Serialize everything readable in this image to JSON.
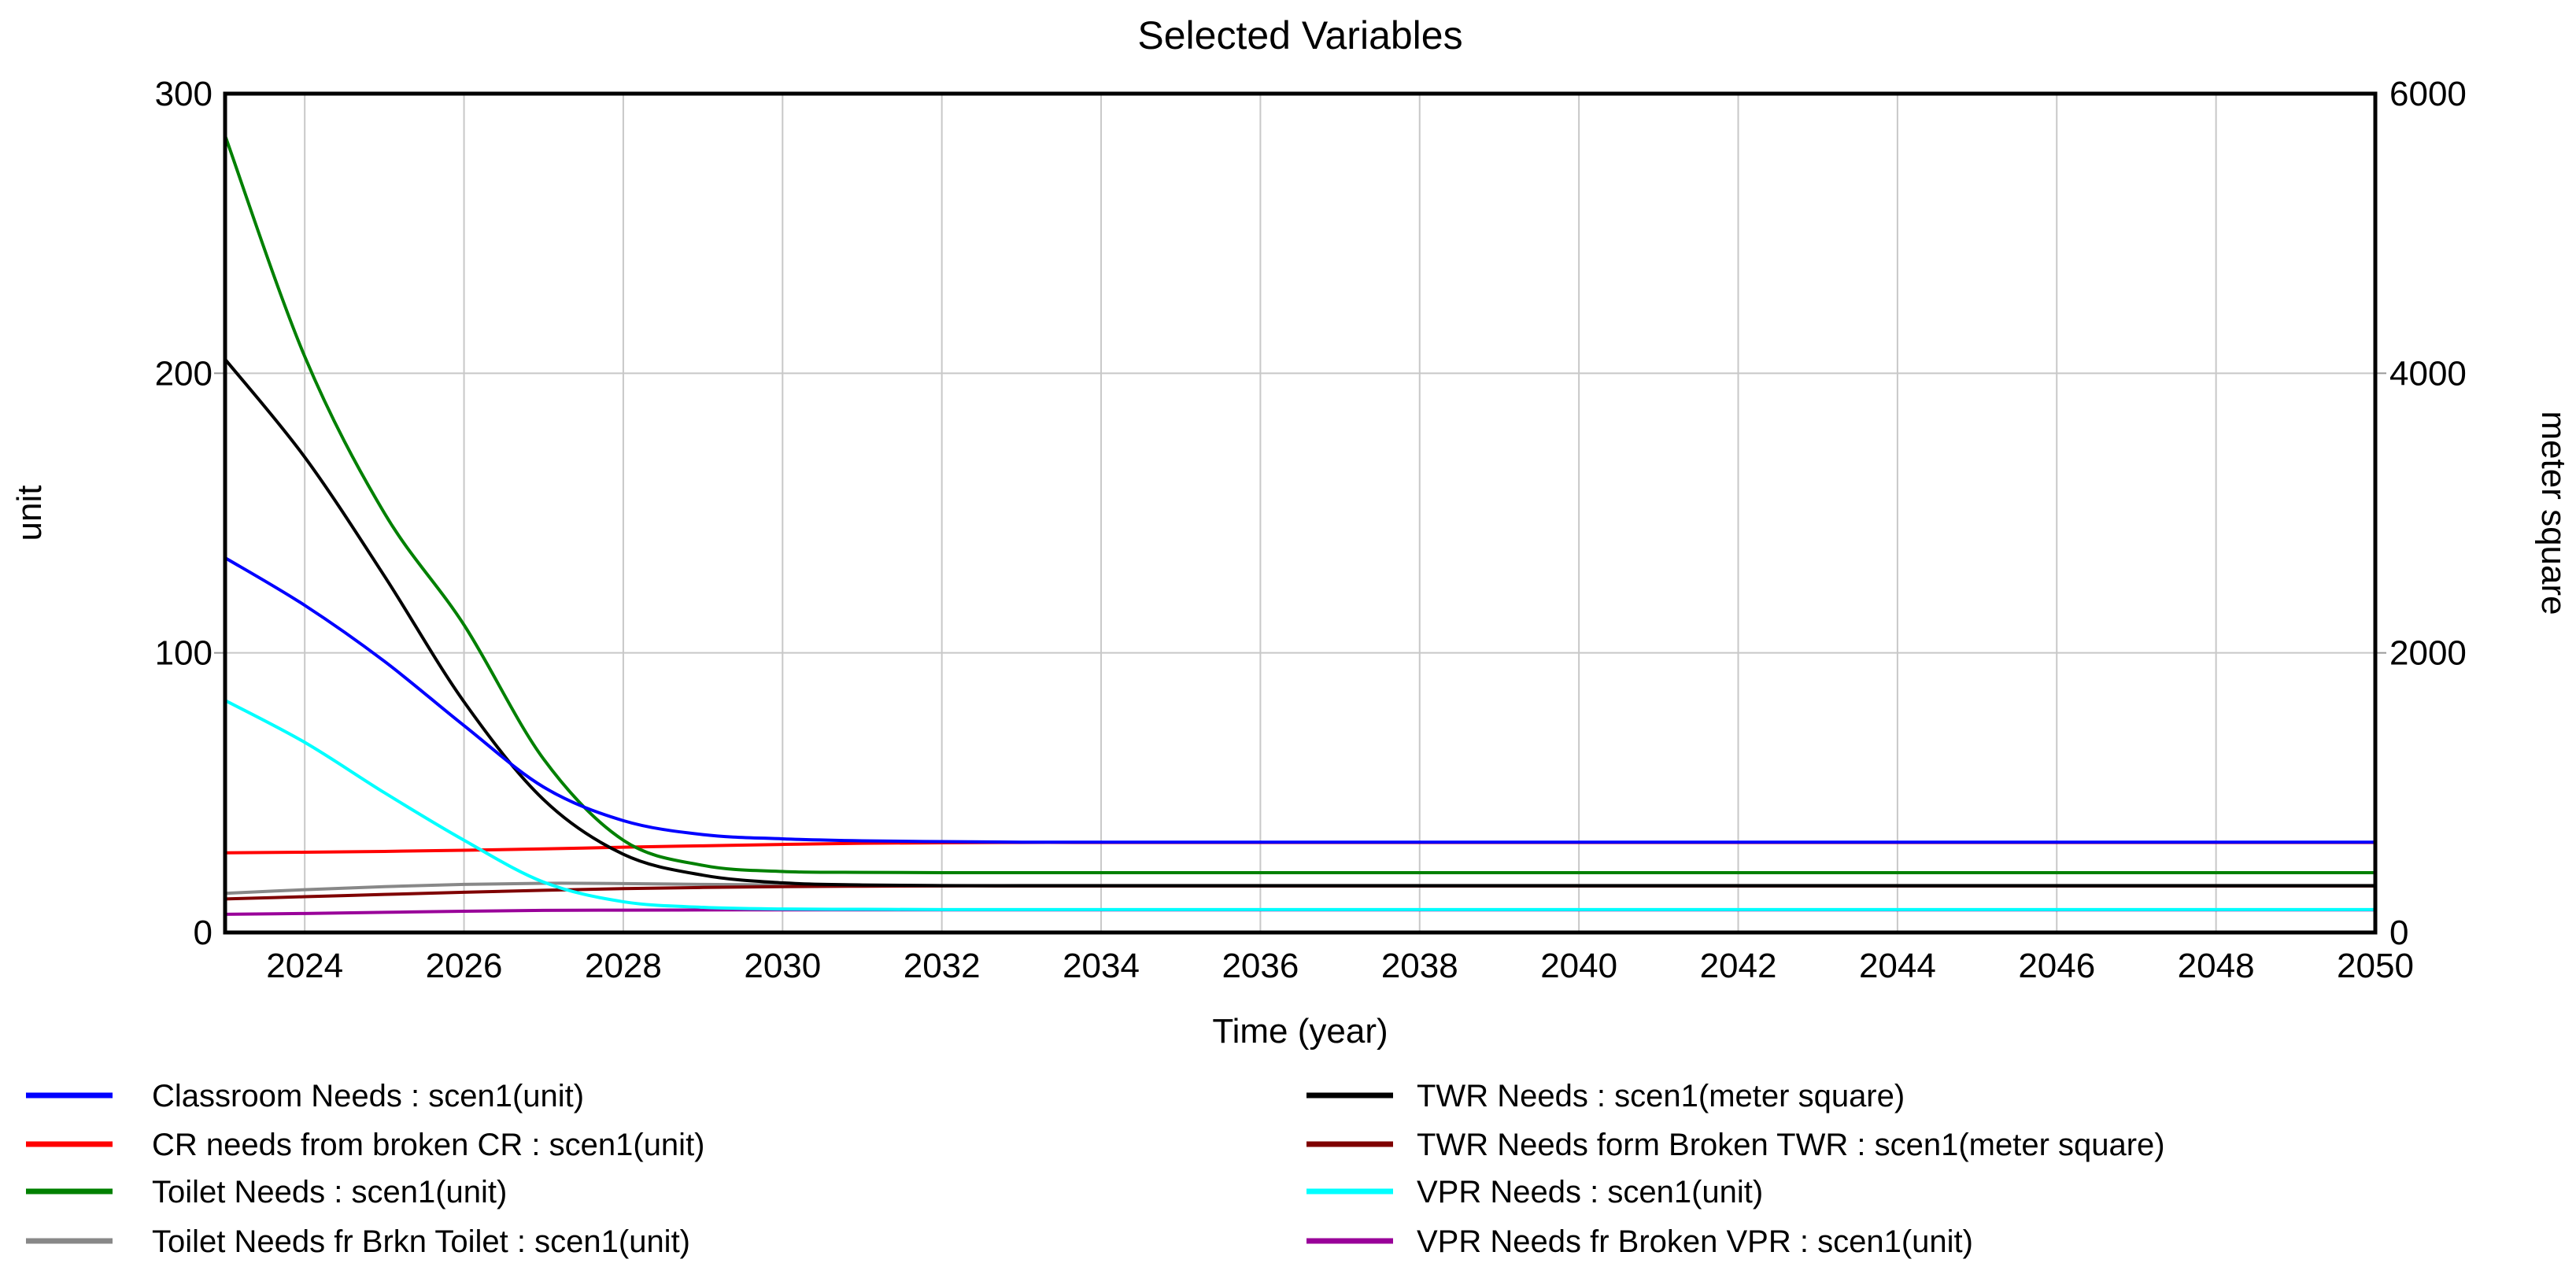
{
  "chart_data": {
    "type": "line",
    "title": "Selected Variables",
    "xlabel": "Time (year)",
    "ylabel_left": "unit",
    "ylabel_right": "meter square",
    "x_range": [
      2023,
      2050
    ],
    "y_left_range": [
      0,
      300
    ],
    "y_right_range": [
      0,
      6000
    ],
    "x_ticks": [
      2024,
      2026,
      2028,
      2030,
      2032,
      2034,
      2036,
      2038,
      2040,
      2042,
      2044,
      2046,
      2048,
      2050
    ],
    "y_left_ticks": [
      0,
      100,
      200,
      300
    ],
    "y_right_ticks": [
      0,
      2000,
      4000,
      6000
    ],
    "grid": true,
    "legend_position": "bottom-two-columns",
    "years": [
      2023,
      2024,
      2025,
      2026,
      2027,
      2028,
      2029,
      2030,
      2031,
      2032,
      2033,
      2034,
      2035,
      2036,
      2037,
      2038,
      2039,
      2040,
      2041,
      2042,
      2043,
      2044,
      2045,
      2046,
      2047,
      2048,
      2049,
      2050
    ],
    "series": [
      {
        "name": "Classroom Needs : scen1(unit)",
        "color": "#0000ff",
        "axis": "left",
        "values": [
          134,
          117,
          97,
          74,
          52,
          40,
          35,
          33.5,
          32.8,
          32.5,
          32.3,
          32.3,
          32.3,
          32.3,
          32.3,
          32.3,
          32.3,
          32.3,
          32.3,
          32.3,
          32.3,
          32.3,
          32.3,
          32.3,
          32.3,
          32.3,
          32.3,
          32.3
        ]
      },
      {
        "name": "CR needs from broken CR : scen1(unit)",
        "color": "#ff0000",
        "axis": "left",
        "values": [
          28.5,
          28.7,
          29,
          29.4,
          29.9,
          30.5,
          31,
          31.5,
          31.9,
          32.1,
          32.2,
          32.2,
          32.2,
          32.2,
          32.2,
          32.2,
          32.2,
          32.2,
          32.2,
          32.2,
          32.2,
          32.2,
          32.2,
          32.2,
          32.2,
          32.2,
          32.2,
          32.2
        ]
      },
      {
        "name": "Toilet Needs : scen1(unit)",
        "color": "#008000",
        "axis": "left",
        "values": [
          285,
          206,
          150,
          110,
          62,
          33,
          24,
          21.8,
          21.5,
          21.4,
          21.4,
          21.4,
          21.4,
          21.4,
          21.4,
          21.4,
          21.4,
          21.4,
          21.4,
          21.4,
          21.4,
          21.4,
          21.4,
          21.4,
          21.4,
          21.4,
          21.4,
          21.4
        ]
      },
      {
        "name": "Toilet Needs fr Brkn Toilet : scen1(unit)",
        "color": "#888888",
        "axis": "left",
        "values": [
          14,
          15.3,
          16.4,
          17.2,
          17.6,
          17.5,
          17.2,
          17,
          16.9,
          16.8,
          16.8,
          16.8,
          16.8,
          16.8,
          16.8,
          16.8,
          16.8,
          16.8,
          16.8,
          16.8,
          16.8,
          16.8,
          16.8,
          16.8,
          16.8,
          16.8,
          16.8,
          16.8
        ]
      },
      {
        "name": "TWR Needs : scen1(meter square)",
        "color": "#000000",
        "axis": "right",
        "values": [
          4100,
          3400,
          2550,
          1650,
          950,
          560,
          410,
          355,
          340,
          335,
          334,
          334,
          334,
          334,
          334,
          334,
          334,
          334,
          334,
          334,
          334,
          334,
          334,
          334,
          334,
          334,
          334,
          334
        ]
      },
      {
        "name": "TWR Needs form Broken TWR : scen1(meter square)",
        "color": "#7f0000",
        "axis": "right",
        "values": [
          240,
          256,
          272,
          288,
          302,
          314,
          322,
          328,
          331,
          333,
          333,
          333,
          333,
          333,
          333,
          333,
          333,
          333,
          333,
          333,
          333,
          333,
          333,
          333,
          333,
          333,
          333,
          333
        ]
      },
      {
        "name": "VPR Needs : scen1(unit)",
        "color": "#00ffff",
        "axis": "left",
        "values": [
          83,
          68,
          50,
          33,
          18,
          11,
          9,
          8.4,
          8.3,
          8.2,
          8.2,
          8.2,
          8.2,
          8.2,
          8.2,
          8.2,
          8.2,
          8.2,
          8.2,
          8.2,
          8.2,
          8.2,
          8.2,
          8.2,
          8.2,
          8.2,
          8.2,
          8.2
        ]
      },
      {
        "name": "VPR Needs fr Broken VPR : scen1(unit)",
        "color": "#990099",
        "axis": "left",
        "values": [
          6.5,
          6.8,
          7.2,
          7.6,
          7.9,
          8,
          8.05,
          8.1,
          8.1,
          8.1,
          8.1,
          8.1,
          8.1,
          8.1,
          8.1,
          8.1,
          8.1,
          8.1,
          8.1,
          8.1,
          8.1,
          8.1,
          8.1,
          8.1,
          8.1,
          8.1,
          8.1,
          8.1
        ]
      }
    ]
  }
}
